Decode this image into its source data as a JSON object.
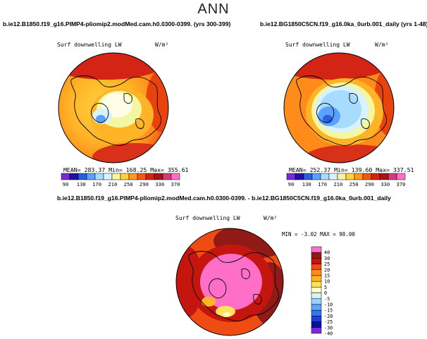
{
  "season": "ANN",
  "colors": {
    "continent_line": "#000000",
    "mean_palette": [
      "#7a2bd6",
      "#1f10a8",
      "#2c5fe0",
      "#5ba1ff",
      "#a7dcff",
      "#d9f2ff",
      "#f4f7a0",
      "#ffd23c",
      "#ff9a1e",
      "#f25a12",
      "#d32416",
      "#a8150f",
      "#d63a7a",
      "#ff6fc7"
    ],
    "diff_palette": [
      "#7a2bd6",
      "#0b0f9e",
      "#1d3fd8",
      "#2f78f0",
      "#59a8ff",
      "#98d2ff",
      "#d6f1ff",
      "#ffffcc",
      "#ffe15a",
      "#ffb427",
      "#ff8c1a",
      "#ee4c13",
      "#c4160f",
      "#911a17",
      "#ff6fc7"
    ]
  },
  "panels": [
    {
      "case": "b.ie12.B1850.f19_g16.PIMP4-pliomip2.modMed.cam.h0.0300-0399. (yrs 300-399)",
      "variable": "Surf downwelling LW",
      "units": "W/m²",
      "stats": "MEAN= 283.37   Min= 168.25   Max= 355.61",
      "colorbar_labels": [
        "90",
        "130",
        "170",
        "210",
        "250",
        "290",
        "330",
        "370"
      ]
    },
    {
      "case": "b.ie12.BG1850C5CN.f19_g16.0ka_0urb.001_daily (yrs 1-48)",
      "variable": "Surf downwelling LW",
      "units": "W/m²",
      "stats": "MEAN= 252.37   Min= 139.60   Max= 337.51",
      "colorbar_labels": [
        "90",
        "130",
        "170",
        "210",
        "250",
        "290",
        "330",
        "370"
      ]
    },
    {
      "case": "b.ie12.B1850.f19_g16.PIMP4-pliomip2.modMed.cam.h0.0300-0399. - b.ie12.BG1850C5CN.f19_g16.0ka_0urb.001_daily",
      "variable": "Surf downwelling LW",
      "units": "W/m²",
      "stats": "MIN =   -3.02  MAX =   98.00",
      "colorbar_labels": [
        "40",
        "30",
        "25",
        "20",
        "15",
        "10",
        "5",
        "0",
        "-5",
        "-10",
        "-15",
        "-20",
        "-25",
        "-30",
        "-40"
      ]
    }
  ],
  "chart_data": [
    {
      "type": "heatmap",
      "projection": "polar stereographic, North Pole",
      "title": "Surf downwelling LW",
      "units": "W/m²",
      "colorbar_levels": [
        90,
        130,
        170,
        210,
        250,
        290,
        330,
        370
      ],
      "mean": 283.37,
      "min": 168.25,
      "max": 355.61
    },
    {
      "type": "heatmap",
      "projection": "polar stereographic, North Pole",
      "title": "Surf downwelling LW",
      "units": "W/m²",
      "colorbar_levels": [
        90,
        130,
        170,
        210,
        250,
        290,
        330,
        370
      ],
      "mean": 252.37,
      "min": 139.6,
      "max": 337.51
    },
    {
      "type": "heatmap",
      "projection": "polar stereographic, North Pole",
      "title": "Surf downwelling LW",
      "units": "W/m²",
      "colorbar_levels": [
        40,
        30,
        25,
        20,
        15,
        10,
        5,
        0,
        -5,
        -10,
        -15,
        -20,
        -25,
        -30,
        -40
      ],
      "min": -3.02,
      "max": 98.0
    }
  ]
}
